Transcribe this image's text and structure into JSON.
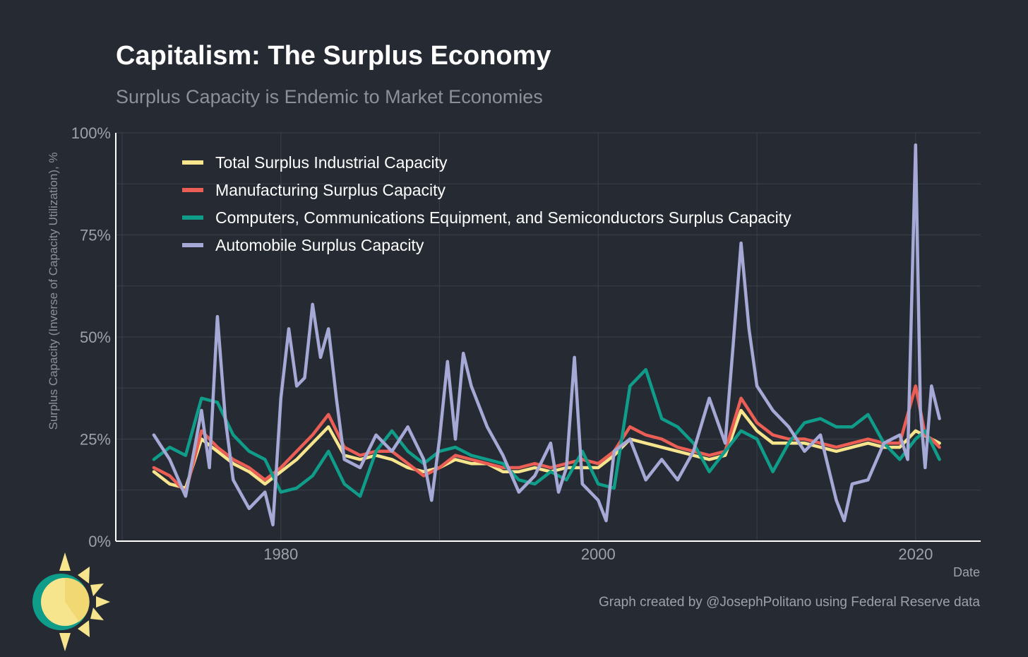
{
  "title": "Capitalism: The Surplus Economy",
  "subtitle": "Surplus Capacity is Endemic to Market Economies",
  "caption": "Graph created by @JosephPolitano using Federal Reserve data",
  "colors": {
    "background": "#252a33",
    "grid": "#3a3f49",
    "axis": "#ffffff",
    "total": "#f6e58d",
    "manufacturing": "#eb5e55",
    "computers": "#0f9d8a",
    "automobile": "#a6a9d6"
  },
  "logo_icon": "sun-icon",
  "chart_data": {
    "type": "line",
    "xlabel": "Date",
    "ylabel": "Surplus Capacity (Inverse of Capacity Utilization), %",
    "xlim": [
      1969.6,
      2024.1
    ],
    "ylim": [
      0,
      100
    ],
    "x_ticks": [
      1980,
      2000,
      2020
    ],
    "x_tick_labels": [
      "1980",
      "2000",
      "2020"
    ],
    "y_ticks": [
      0,
      25,
      50,
      75,
      100
    ],
    "y_tick_labels": [
      "0%",
      "25%",
      "50%",
      "75%",
      "100%"
    ],
    "grid": true,
    "legend_position": "top-left",
    "series": [
      {
        "name": "Total Surplus Industrial Capacity",
        "color_key": "total",
        "points": [
          [
            1972,
            17
          ],
          [
            1973,
            14
          ],
          [
            1974,
            13
          ],
          [
            1975,
            25
          ],
          [
            1976,
            22
          ],
          [
            1977,
            19
          ],
          [
            1978,
            17
          ],
          [
            1979,
            14
          ],
          [
            1980,
            17
          ],
          [
            1981,
            20
          ],
          [
            1982,
            24
          ],
          [
            1983,
            28
          ],
          [
            1984,
            21
          ],
          [
            1985,
            20
          ],
          [
            1986,
            21
          ],
          [
            1987,
            20
          ],
          [
            1988,
            18
          ],
          [
            1989,
            17
          ],
          [
            1990,
            18
          ],
          [
            1991,
            20
          ],
          [
            1992,
            19
          ],
          [
            1993,
            19
          ],
          [
            1994,
            17
          ],
          [
            1995,
            17
          ],
          [
            1996,
            18
          ],
          [
            1997,
            17
          ],
          [
            1998,
            18
          ],
          [
            1999,
            18
          ],
          [
            2000,
            18
          ],
          [
            2001,
            21
          ],
          [
            2002,
            25
          ],
          [
            2003,
            24
          ],
          [
            2004,
            23
          ],
          [
            2005,
            22
          ],
          [
            2006,
            21
          ],
          [
            2007,
            20
          ],
          [
            2008,
            21
          ],
          [
            2009,
            32
          ],
          [
            2010,
            27
          ],
          [
            2011,
            24
          ],
          [
            2012,
            24
          ],
          [
            2013,
            24
          ],
          [
            2014,
            23
          ],
          [
            2015,
            22
          ],
          [
            2016,
            23
          ],
          [
            2017,
            24
          ],
          [
            2018,
            23
          ],
          [
            2019,
            23
          ],
          [
            2020,
            27
          ],
          [
            2021,
            25
          ],
          [
            2021.5,
            24
          ]
        ]
      },
      {
        "name": "Manufacturing Surplus Capacity",
        "color_key": "manufacturing",
        "points": [
          [
            1972,
            18
          ],
          [
            1973,
            16
          ],
          [
            1974,
            12
          ],
          [
            1975,
            27
          ],
          [
            1976,
            23
          ],
          [
            1977,
            20
          ],
          [
            1978,
            18
          ],
          [
            1979,
            15
          ],
          [
            1980,
            18
          ],
          [
            1981,
            22
          ],
          [
            1982,
            26
          ],
          [
            1983,
            31
          ],
          [
            1984,
            23
          ],
          [
            1985,
            21
          ],
          [
            1986,
            22
          ],
          [
            1987,
            22
          ],
          [
            1988,
            19
          ],
          [
            1989,
            16
          ],
          [
            1990,
            18
          ],
          [
            1991,
            21
          ],
          [
            1992,
            20
          ],
          [
            1993,
            19
          ],
          [
            1994,
            18
          ],
          [
            1995,
            18
          ],
          [
            1996,
            19
          ],
          [
            1997,
            18
          ],
          [
            1998,
            19
          ],
          [
            1999,
            20
          ],
          [
            2000,
            19
          ],
          [
            2001,
            22
          ],
          [
            2002,
            28
          ],
          [
            2003,
            26
          ],
          [
            2004,
            25
          ],
          [
            2005,
            23
          ],
          [
            2006,
            22
          ],
          [
            2007,
            21
          ],
          [
            2008,
            22
          ],
          [
            2009,
            35
          ],
          [
            2010,
            29
          ],
          [
            2011,
            26
          ],
          [
            2012,
            25
          ],
          [
            2013,
            25
          ],
          [
            2014,
            24
          ],
          [
            2015,
            23
          ],
          [
            2016,
            24
          ],
          [
            2017,
            25
          ],
          [
            2018,
            24
          ],
          [
            2019,
            24
          ],
          [
            2020,
            38
          ],
          [
            2020.6,
            26
          ],
          [
            2021,
            25
          ],
          [
            2021.5,
            23
          ]
        ]
      },
      {
        "name": "Computers, Communications Equipment, and Semiconductors Surplus Capacity",
        "color_key": "computers",
        "points": [
          [
            1972,
            20
          ],
          [
            1973,
            23
          ],
          [
            1974,
            21
          ],
          [
            1975,
            35
          ],
          [
            1976,
            34
          ],
          [
            1977,
            26
          ],
          [
            1978,
            22
          ],
          [
            1979,
            20
          ],
          [
            1980,
            12
          ],
          [
            1981,
            13
          ],
          [
            1982,
            16
          ],
          [
            1983,
            22
          ],
          [
            1984,
            14
          ],
          [
            1985,
            11
          ],
          [
            1986,
            22
          ],
          [
            1987,
            27
          ],
          [
            1988,
            22
          ],
          [
            1989,
            19
          ],
          [
            1990,
            22
          ],
          [
            1991,
            23
          ],
          [
            1992,
            21
          ],
          [
            1993,
            20
          ],
          [
            1994,
            19
          ],
          [
            1995,
            15
          ],
          [
            1996,
            14
          ],
          [
            1997,
            17
          ],
          [
            1998,
            15
          ],
          [
            1999,
            22
          ],
          [
            2000,
            14
          ],
          [
            2001,
            13
          ],
          [
            2002,
            38
          ],
          [
            2003,
            42
          ],
          [
            2004,
            30
          ],
          [
            2005,
            28
          ],
          [
            2006,
            24
          ],
          [
            2007,
            17
          ],
          [
            2008,
            22
          ],
          [
            2009,
            27
          ],
          [
            2010,
            25
          ],
          [
            2011,
            17
          ],
          [
            2012,
            24
          ],
          [
            2013,
            29
          ],
          [
            2014,
            30
          ],
          [
            2015,
            28
          ],
          [
            2016,
            28
          ],
          [
            2017,
            31
          ],
          [
            2018,
            24
          ],
          [
            2019,
            20
          ],
          [
            2020,
            25
          ],
          [
            2020.6,
            27
          ],
          [
            2021,
            24
          ],
          [
            2021.5,
            20
          ]
        ]
      },
      {
        "name": "Automobile Surplus Capacity",
        "color_key": "automobile",
        "points": [
          [
            1972,
            26
          ],
          [
            1973,
            20
          ],
          [
            1974,
            11
          ],
          [
            1975,
            32
          ],
          [
            1975.5,
            18
          ],
          [
            1976,
            55
          ],
          [
            1976.5,
            30
          ],
          [
            1977,
            15
          ],
          [
            1978,
            8
          ],
          [
            1979,
            12
          ],
          [
            1979.5,
            4
          ],
          [
            1980,
            35
          ],
          [
            1980.5,
            52
          ],
          [
            1981,
            38
          ],
          [
            1981.5,
            40
          ],
          [
            1982,
            58
          ],
          [
            1982.5,
            45
          ],
          [
            1983,
            52
          ],
          [
            1983.5,
            35
          ],
          [
            1984,
            20
          ],
          [
            1985,
            18
          ],
          [
            1986,
            26
          ],
          [
            1987,
            22
          ],
          [
            1988,
            28
          ],
          [
            1989,
            20
          ],
          [
            1989.5,
            10
          ],
          [
            1990,
            25
          ],
          [
            1990.5,
            44
          ],
          [
            1991,
            25
          ],
          [
            1991.5,
            46
          ],
          [
            1992,
            38
          ],
          [
            1993,
            28
          ],
          [
            1994,
            21
          ],
          [
            1995,
            12
          ],
          [
            1996,
            16
          ],
          [
            1997,
            24
          ],
          [
            1997.5,
            12
          ],
          [
            1998,
            18
          ],
          [
            1998.5,
            45
          ],
          [
            1999,
            14
          ],
          [
            2000,
            10
          ],
          [
            2000.5,
            5
          ],
          [
            2001,
            22
          ],
          [
            2002,
            25
          ],
          [
            2003,
            15
          ],
          [
            2004,
            20
          ],
          [
            2005,
            15
          ],
          [
            2006,
            22
          ],
          [
            2007,
            35
          ],
          [
            2008,
            24
          ],
          [
            2008.5,
            48
          ],
          [
            2009,
            73
          ],
          [
            2009.5,
            52
          ],
          [
            2010,
            38
          ],
          [
            2011,
            32
          ],
          [
            2012,
            28
          ],
          [
            2013,
            22
          ],
          [
            2014,
            26
          ],
          [
            2015,
            10
          ],
          [
            2015.5,
            5
          ],
          [
            2016,
            14
          ],
          [
            2017,
            15
          ],
          [
            2018,
            24
          ],
          [
            2019,
            26
          ],
          [
            2019.5,
            20
          ],
          [
            2020,
            97
          ],
          [
            2020.3,
            32
          ],
          [
            2020.6,
            18
          ],
          [
            2021,
            38
          ],
          [
            2021.5,
            30
          ]
        ]
      }
    ]
  }
}
